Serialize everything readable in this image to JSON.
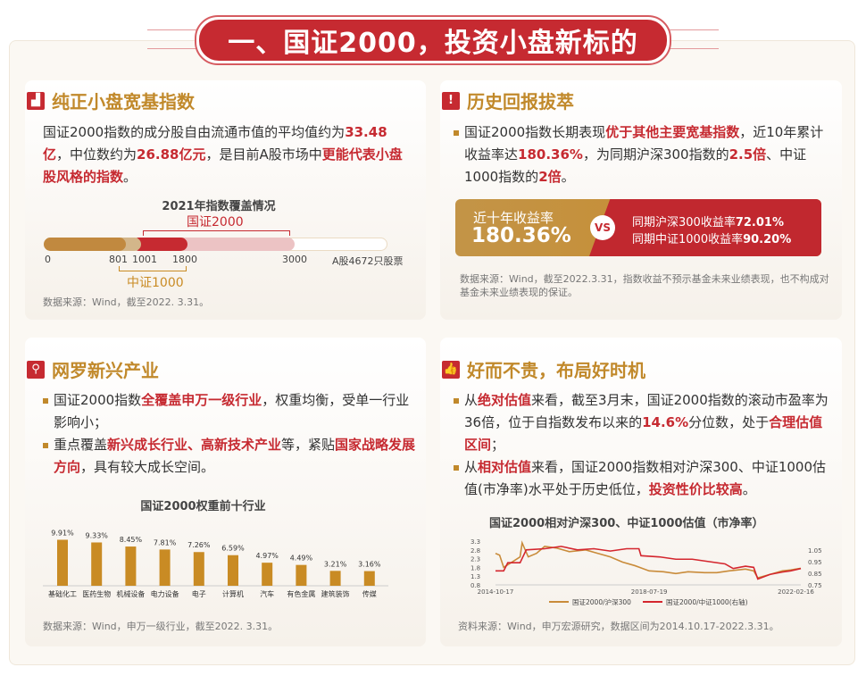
{
  "banner": {
    "title": "一、国证2000，投资小盘新标的"
  },
  "p1": {
    "title": "纯正小盘宽基指数",
    "text": [
      {
        "t": "国证2000指数的成分股自由流通市值的平均值约为"
      },
      {
        "t": "33.48亿",
        "b": 1
      },
      {
        "t": "，中位数约为"
      },
      {
        "t": "26.88亿元",
        "b": 1
      },
      {
        "t": "，是目前A股市场中"
      },
      {
        "t": "更能代表小盘股风格的指数",
        "b": 1
      },
      {
        "t": "。"
      }
    ],
    "cov_title": "2021年指数覆盖情况",
    "label_2000": "国证2000",
    "label_1000": "中证1000",
    "ticks": [
      "0",
      "801",
      "1001",
      "1800",
      "3000",
      "A股4672只股票"
    ],
    "source": "数据来源：Wind，截至2022. 3.31。"
  },
  "p2": {
    "title": "历史回报拔萃",
    "text": [
      {
        "t": "国证2000指数长期表现"
      },
      {
        "t": "优于其他主要宽基指数",
        "b": 1
      },
      {
        "t": "，近10年累计收益率达"
      },
      {
        "t": "180.36%",
        "b": 1
      },
      {
        "t": "，为同期沪深300指数的"
      },
      {
        "t": "2.5倍",
        "b": 1
      },
      {
        "t": "、中证1000指数的"
      },
      {
        "t": "2倍",
        "b": 1
      },
      {
        "t": "。"
      }
    ],
    "left_label": "近十年收益率",
    "left_value": "180.36%",
    "vs": "VS",
    "r1_label": "同期沪深300收益率",
    "r1_value": "72.01%",
    "r2_label": "同期中证1000收益率",
    "r2_value": "90.20%",
    "source": "数据来源：Wind，截至2022.3.31，指数收益不预示基金未来业绩表现，也不构成对基金未来业绩表现的保证。"
  },
  "p3": {
    "title": "网罗新兴产业",
    "bullets": [
      [
        {
          "t": "国证2000指数"
        },
        {
          "t": "全覆盖申万一级行业",
          "b": 1
        },
        {
          "t": "，权重均衡，受单一行业影响小；"
        }
      ],
      [
        {
          "t": "重点覆盖"
        },
        {
          "t": "新兴成长行业、高新技术产业",
          "b": 1
        },
        {
          "t": "等，紧贴"
        },
        {
          "t": "国家战略发展方向",
          "b": 1
        },
        {
          "t": "，具有较大成长空间。"
        }
      ]
    ],
    "source": "数据来源：Wind，申万一级行业，截至2022. 3.31。"
  },
  "p4": {
    "title": "好而不贵，布局好时机",
    "bullets": [
      [
        {
          "t": "从"
        },
        {
          "t": "绝对估值",
          "b": 1
        },
        {
          "t": "来看，截至3月末，国证2000指数的滚动市盈率为36倍，位于自指数发布以来的"
        },
        {
          "t": "14.6%",
          "b": 1
        },
        {
          "t": "分位数，处于"
        },
        {
          "t": "合理估值区间",
          "b": 1
        },
        {
          "t": "；"
        }
      ],
      [
        {
          "t": "从"
        },
        {
          "t": "相对估值",
          "b": 1
        },
        {
          "t": "来看，国证2000指数相对沪深300、中证1000估值(市净率)水平处于历史低位，"
        },
        {
          "t": "投资性价比较高",
          "b": 1
        },
        {
          "t": "。"
        }
      ]
    ],
    "source": "资料来源：Wind，申万宏源研究，数据区间为2014.10.17-2022.3.31。"
  },
  "chart_data": [
    {
      "type": "bar",
      "title": "国证2000权重前十行业",
      "categories": [
        "基础化工",
        "医药生物",
        "机械设备",
        "电力设备",
        "电子",
        "计算机",
        "汽车",
        "有色金属",
        "建筑装饰",
        "传媒"
      ],
      "values": [
        9.91,
        9.33,
        8.45,
        7.81,
        7.26,
        6.59,
        4.97,
        4.49,
        3.21,
        3.16
      ],
      "labels": [
        "9.91%",
        "9.33%",
        "8.45%",
        "7.81%",
        "7.26%",
        "6.59%",
        "4.97%",
        "4.49%",
        "3.21%",
        "3.16%"
      ],
      "color": "#c98b24"
    },
    {
      "type": "line",
      "title": "国证2000相对沪深300、中证1000估值（市净率）",
      "x_ticks": [
        "2014-10-17",
        "2018-07-19",
        "2022-02-16"
      ],
      "y_left_ticks": [
        "0.8",
        "1.3",
        "1.8",
        "2.3",
        "2.8",
        "3.3"
      ],
      "y_right_ticks": [
        "0.75",
        "0.85",
        "0.95",
        "1.05"
      ],
      "ylim_left": [
        0.8,
        3.3
      ],
      "ylim_right": [
        0.75,
        1.125
      ],
      "xlim": [
        2014.8,
        2022.25
      ],
      "series": [
        {
          "name": "国证2000/沪深300",
          "color": "#c98b3a",
          "axis": "left",
          "x": [
            2014.8,
            2014.9,
            2015.0,
            2015.2,
            2015.4,
            2015.45,
            2015.6,
            2015.8,
            2016.0,
            2016.3,
            2016.6,
            2017.0,
            2017.3,
            2017.6,
            2017.9,
            2018.2,
            2018.55,
            2018.9,
            2019.2,
            2019.5,
            2019.9,
            2020.2,
            2020.5,
            2020.9,
            2021.1,
            2021.2,
            2021.5,
            2021.8,
            2022.0,
            2022.25
          ],
          "y": [
            2.6,
            2.5,
            1.8,
            2.1,
            2.4,
            3.2,
            2.4,
            2.6,
            3.0,
            2.9,
            2.7,
            2.8,
            2.6,
            2.4,
            2.1,
            1.9,
            1.6,
            1.55,
            1.45,
            1.55,
            1.5,
            1.5,
            1.6,
            1.7,
            1.6,
            1.2,
            1.4,
            1.6,
            1.65,
            1.75
          ]
        },
        {
          "name": "国证2000/中证1000(右轴)",
          "color": "#d4262e",
          "axis": "left_right",
          "x": [
            2014.8,
            2015.0,
            2015.1,
            2015.4,
            2015.55,
            2016.0,
            2016.4,
            2016.8,
            2017.2,
            2017.6,
            2018.0,
            2018.3,
            2018.35,
            2018.8,
            2019.2,
            2019.6,
            2020.0,
            2020.4,
            2020.6,
            2020.9,
            2021.1,
            2021.2,
            2021.5,
            2021.8,
            2022.0,
            2022.25
          ],
          "y": [
            0.87,
            0.87,
            0.94,
            0.94,
            1.05,
            1.06,
            1.08,
            1.05,
            1.06,
            1.04,
            1.06,
            1.06,
            1.0,
            0.99,
            0.97,
            0.97,
            0.95,
            0.93,
            0.89,
            0.91,
            0.9,
            0.8,
            0.84,
            0.86,
            0.87,
            0.89
          ]
        }
      ]
    }
  ]
}
